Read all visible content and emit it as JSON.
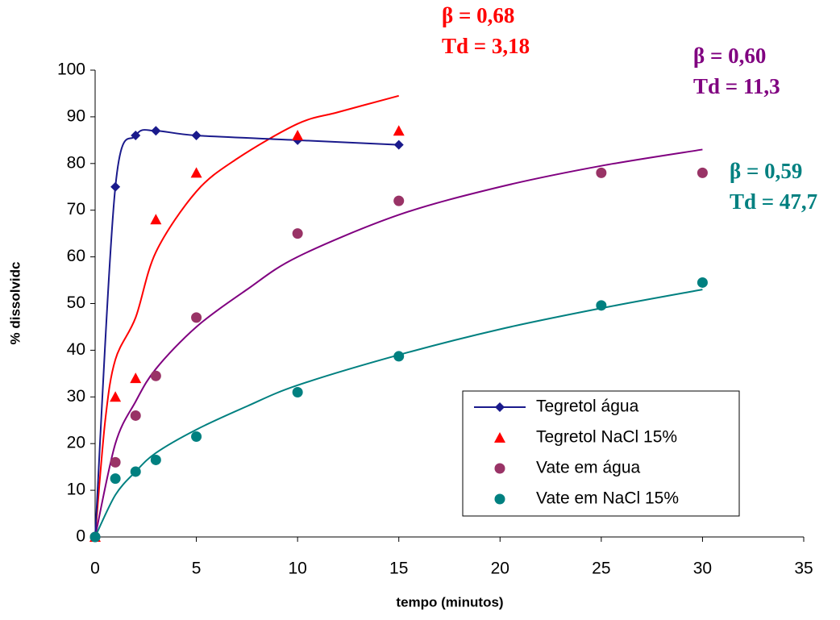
{
  "chart_data": {
    "type": "scatter",
    "xlabel": "tempo (minutos)",
    "ylabel": "% dissolvidc",
    "xlim": [
      0,
      35
    ],
    "xticks": [
      0,
      5,
      10,
      15,
      20,
      25,
      30,
      35
    ],
    "ylim": [
      0,
      100
    ],
    "yticks": [
      0,
      10,
      20,
      30,
      40,
      50,
      60,
      70,
      80,
      90,
      100
    ],
    "grid": false,
    "legend": "lower right",
    "series": [
      {
        "name": "Tegretol água",
        "color": "#1a1a8c",
        "marker": "diamond",
        "line": true,
        "x": [
          0,
          1,
          2,
          3,
          5,
          10,
          15
        ],
        "values": [
          0,
          75,
          86,
          87,
          86,
          85,
          84
        ]
      },
      {
        "name": "Tegretol NaCl 15%",
        "color": "#ff0000",
        "marker": "triangle",
        "line": false,
        "x": [
          0,
          1,
          2,
          3,
          5,
          10,
          15
        ],
        "values": [
          0,
          30,
          34,
          68,
          78,
          86,
          87
        ]
      },
      {
        "name": "Vate em água",
        "color": "#993366",
        "marker": "circle",
        "line": false,
        "x": [
          0,
          1,
          2,
          3,
          5,
          10,
          15,
          25,
          30
        ],
        "values": [
          0,
          16,
          26,
          34.5,
          47,
          65,
          72,
          78,
          78
        ]
      },
      {
        "name": "Vate em NaCl 15%",
        "color": "#008080",
        "marker": "circle",
        "line": false,
        "x": [
          0,
          1,
          2,
          3,
          5,
          10,
          15,
          25,
          30
        ],
        "values": [
          0,
          12.5,
          14,
          16.5,
          21.5,
          31,
          38.7,
          49.6,
          54.5
        ]
      }
    ],
    "fits": [
      {
        "color": "#ff0000",
        "x": [
          0,
          0.5,
          1,
          2,
          3,
          5,
          7,
          10,
          12,
          15
        ],
        "values": [
          0,
          25,
          38,
          47,
          61,
          74,
          81,
          88.5,
          91,
          94.5
        ]
      },
      {
        "color": "#800080",
        "x": [
          0,
          1,
          2,
          3,
          5,
          7.5,
          10,
          15,
          20,
          25,
          30
        ],
        "values": [
          0,
          20,
          29,
          36,
          45,
          53,
          60,
          69,
          75,
          79.5,
          83
        ]
      },
      {
        "color": "#008080",
        "x": [
          0,
          1,
          2,
          3,
          5,
          7.5,
          10,
          15,
          20,
          25,
          30
        ],
        "values": [
          0,
          9,
          14,
          18,
          23,
          28,
          32.5,
          39,
          44.5,
          49,
          53
        ]
      }
    ],
    "annotations": [
      {
        "color": "#ff0000",
        "lines": [
          "β = 0,68",
          "Td = 3,18"
        ]
      },
      {
        "color": "#800080",
        "lines": [
          "β = 0,60",
          "Td = 11,3"
        ]
      },
      {
        "color": "#008080",
        "lines": [
          "β = 0,59",
          "Td = 47,7"
        ]
      }
    ]
  }
}
